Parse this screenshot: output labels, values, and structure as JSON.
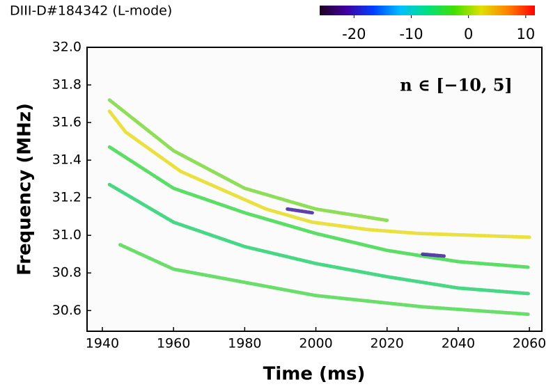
{
  "chart_data": {
    "type": "line",
    "title": "DIII-D#184342 (L-mode)",
    "annotation": "n ∈ [−10, 5]",
    "x_label": "Time (ms)",
    "y_label": "Frequency (MHz)",
    "xlim": [
      1935.7,
      2063.5
    ],
    "ylim": [
      30.49,
      32.0
    ],
    "xticks": [
      1940,
      1960,
      1980,
      2000,
      2020,
      2040,
      2060
    ],
    "yticks": [
      30.6,
      30.8,
      {
        "value": 31.0,
        "label": "31.0"
      },
      31.2,
      31.4,
      31.6,
      31.8,
      {
        "value": 32.0,
        "label": "32.0"
      }
    ],
    "colorbar": {
      "lim": [
        -26,
        11.6
      ],
      "ticks": [
        -20,
        -10,
        0,
        10
      ],
      "colors": [
        "#200020",
        "#4000a0",
        "#0040ff",
        "#00c0ff",
        "#00e080",
        "#40e000",
        "#e0e000",
        "#ff8000",
        "#ff0000"
      ]
    },
    "series": [
      {
        "color": "#e6dc1e",
        "x": [
          1942,
          1946.5,
          1962,
          1968,
          1986,
          1999,
          2015,
          2029,
          2060
        ],
        "values": [
          31.66,
          31.55,
          31.34,
          31.29,
          31.14,
          31.07,
          31.03,
          31.01,
          30.99
        ]
      },
      {
        "color": "#7ad83a",
        "x": [
          1942,
          1960,
          1980,
          2000,
          2020
        ],
        "values": [
          31.72,
          31.45,
          31.25,
          31.14,
          31.08
        ]
      },
      {
        "color": "#3ed84a",
        "x": [
          1942,
          1960,
          1980,
          2000,
          2020,
          2040,
          2060
        ],
        "values": [
          31.47,
          31.25,
          31.12,
          31.01,
          30.92,
          30.86,
          30.83
        ]
      },
      {
        "color": "#28d070",
        "x": [
          1942,
          1960,
          1980,
          2000,
          2020,
          2040,
          2060
        ],
        "values": [
          31.27,
          31.07,
          30.94,
          30.85,
          30.78,
          30.72,
          30.69
        ]
      },
      {
        "color": "#50d850",
        "x": [
          1945,
          1960,
          2000,
          2030,
          2060
        ],
        "values": [
          30.95,
          30.82,
          30.68,
          30.62,
          30.58
        ]
      },
      {
        "color": "#4020a0",
        "x": [
          1992,
          1999
        ],
        "values": [
          31.14,
          31.12
        ]
      },
      {
        "color": "#4020a0",
        "x": [
          2030,
          2036
        ],
        "values": [
          30.9,
          30.89
        ]
      }
    ]
  }
}
